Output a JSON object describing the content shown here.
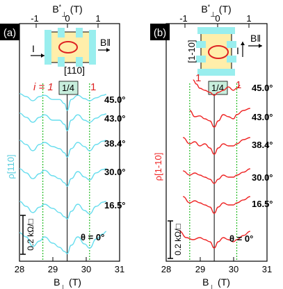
{
  "chart_data": [
    {
      "type": "line",
      "panel_label": "(a)",
      "xlabel": "B⊥ (T)",
      "xlabel_top": "B*⊥ (T)",
      "ylabel": "ρ[110]",
      "x_ticks": [
        "28",
        "29",
        "30",
        "31"
      ],
      "x_top_ticks": [
        "-1",
        "0",
        "1"
      ],
      "xlim": [
        28,
        31
      ],
      "series_color": "#66ddee",
      "markers": {
        "i_label": "i = 1",
        "one_right": "1",
        "quarter": "1/4",
        "left_x": 28.7,
        "center_x": 29.43,
        "right_x": 30.1
      },
      "inset": {
        "current": "I",
        "field": "B‖",
        "direction": "[110]"
      },
      "scale_bar": "0.2 kΩ/□",
      "angles": [
        "45.0°",
        "43.0°",
        "38.4°",
        "30.0°",
        "16.5°",
        "θ = 0°"
      ],
      "series": [
        {
          "angle": "45.0°",
          "x": [
            28.0,
            28.2,
            28.4,
            28.6,
            28.75,
            29.0,
            29.2,
            29.35,
            29.43,
            29.55,
            29.75,
            29.95,
            30.1,
            30.3,
            30.5,
            30.6
          ],
          "y": [
            0.12,
            0.05,
            -0.05,
            0.05,
            0.08,
            -0.02,
            -0.02,
            -0.12,
            -0.28,
            -0.02,
            0.08,
            0.0,
            -0.05,
            0.02,
            0.08,
            0.1
          ]
        },
        {
          "angle": "43.0°",
          "x": [
            28.0,
            28.2,
            28.4,
            28.6,
            28.75,
            29.0,
            29.2,
            29.35,
            29.43,
            29.55,
            29.75,
            29.95,
            30.1,
            30.3,
            30.5,
            30.6
          ],
          "y": [
            0.12,
            0.02,
            -0.1,
            0.02,
            0.08,
            -0.05,
            -0.05,
            -0.15,
            -0.3,
            -0.05,
            0.08,
            -0.05,
            -0.1,
            0.0,
            0.08,
            0.1
          ]
        },
        {
          "angle": "38.4°",
          "x": [
            28.0,
            28.2,
            28.4,
            28.6,
            28.75,
            29.0,
            29.2,
            29.35,
            29.43,
            29.55,
            29.75,
            29.95,
            30.1,
            30.3,
            30.5,
            30.6
          ],
          "y": [
            0.1,
            0.0,
            -0.15,
            0.0,
            0.05,
            -0.05,
            -0.1,
            -0.2,
            -0.3,
            -0.1,
            0.05,
            -0.05,
            -0.15,
            0.0,
            0.08,
            0.1
          ]
        },
        {
          "angle": "30.0°",
          "x": [
            28.0,
            28.2,
            28.4,
            28.6,
            28.75,
            29.0,
            29.2,
            29.35,
            29.43,
            29.55,
            29.75,
            29.95,
            30.1,
            30.3,
            30.5,
            30.6
          ],
          "y": [
            0.12,
            0.02,
            -0.12,
            0.0,
            0.08,
            -0.05,
            -0.12,
            -0.22,
            -0.3,
            -0.12,
            0.05,
            -0.08,
            -0.15,
            0.02,
            0.1,
            0.12
          ]
        },
        {
          "angle": "16.5°",
          "x": [
            28.0,
            28.2,
            28.4,
            28.6,
            28.75,
            29.0,
            29.2,
            29.35,
            29.43,
            29.55,
            29.75,
            29.95,
            30.1,
            30.3,
            30.5,
            30.6
          ],
          "y": [
            0.12,
            0.0,
            -0.15,
            -0.02,
            0.05,
            -0.05,
            -0.15,
            -0.25,
            -0.3,
            -0.12,
            0.05,
            -0.1,
            -0.18,
            0.0,
            0.1,
            0.12
          ]
        },
        {
          "angle": "θ = 0°",
          "x": [
            28.0,
            28.2,
            28.4,
            28.6,
            28.75,
            29.0,
            29.2,
            29.35,
            29.43,
            29.55,
            29.75,
            29.95,
            30.1,
            30.3,
            30.5,
            30.6
          ],
          "y": [
            0.15,
            0.05,
            -0.18,
            -0.05,
            0.05,
            -0.1,
            -0.2,
            -0.3,
            -0.35,
            -0.15,
            0.05,
            -0.12,
            -0.22,
            0.0,
            0.12,
            0.18
          ]
        }
      ]
    },
    {
      "type": "line",
      "panel_label": "(b)",
      "xlabel": "B⊥ (T)",
      "xlabel_top": "B*⊥ (T)",
      "ylabel": "ρ[1-10]",
      "x_ticks": [
        "28",
        "29",
        "30",
        "31"
      ],
      "x_top_ticks": [
        "-1",
        "0",
        "1"
      ],
      "xlim": [
        28,
        31
      ],
      "series_color": "#ee2222",
      "markers": {
        "one_left": "1",
        "one_right": "1",
        "quarter": "1/4",
        "left_x": 28.7,
        "center_x": 29.43,
        "right_x": 30.1
      },
      "inset": {
        "current": "I",
        "field": "B‖",
        "direction": "[1-10]"
      },
      "scale_bar": "0.2 kΩ/□",
      "angles": [
        "45.0°",
        "43.0°",
        "38.4°",
        "30.0°",
        "16.5°",
        "θ = 0°"
      ],
      "series": [
        {
          "angle": "45.0°",
          "x": [
            28.8,
            28.9,
            29.0,
            29.15,
            29.3,
            29.43,
            29.55,
            29.7,
            29.85,
            30.0,
            30.1,
            30.2
          ],
          "y": [
            0.25,
            0.15,
            0.05,
            0.0,
            -0.05,
            -0.12,
            -0.05,
            0.0,
            0.08,
            0.0,
            0.05,
            0.12
          ]
        },
        {
          "angle": "43.0°",
          "x": [
            28.7,
            28.85,
            29.0,
            29.15,
            29.3,
            29.43,
            29.55,
            29.7,
            29.85,
            30.0,
            30.1,
            30.3,
            30.5
          ],
          "y": [
            0.15,
            0.0,
            0.02,
            -0.05,
            -0.1,
            -0.25,
            -0.1,
            0.05,
            0.0,
            -0.05,
            0.05,
            0.15,
            0.2
          ]
        },
        {
          "angle": "38.4°",
          "x": [
            28.5,
            28.7,
            28.85,
            29.0,
            29.15,
            29.3,
            29.43,
            29.55,
            29.7,
            29.85,
            30.0,
            30.1,
            30.3,
            30.5
          ],
          "y": [
            0.2,
            0.05,
            0.1,
            0.0,
            0.05,
            -0.05,
            -0.2,
            -0.05,
            0.05,
            0.0,
            0.0,
            0.05,
            0.15,
            0.2
          ]
        },
        {
          "angle": "30.0°",
          "x": [
            28.5,
            28.7,
            28.85,
            29.0,
            29.15,
            29.3,
            29.43,
            29.55,
            29.7,
            29.85,
            30.0,
            30.1,
            30.3,
            30.5
          ],
          "y": [
            0.15,
            0.05,
            0.1,
            0.05,
            0.0,
            -0.05,
            -0.15,
            -0.05,
            0.05,
            0.0,
            0.0,
            0.05,
            0.12,
            0.2
          ]
        },
        {
          "angle": "16.5°",
          "x": [
            28.5,
            28.7,
            28.85,
            29.0,
            29.15,
            29.3,
            29.43,
            29.55,
            29.7,
            29.85,
            30.0,
            30.1,
            30.3,
            30.5
          ],
          "y": [
            0.2,
            0.05,
            0.1,
            0.05,
            0.0,
            -0.05,
            -0.2,
            -0.05,
            0.05,
            0.0,
            0.0,
            0.05,
            0.12,
            0.2
          ]
        },
        {
          "angle": "θ = 0°",
          "x": [
            28.4,
            28.6,
            28.8,
            29.0,
            29.15,
            29.3,
            29.43,
            29.55,
            29.7,
            29.85,
            30.0,
            30.1,
            30.3,
            30.5
          ],
          "y": [
            0.2,
            0.05,
            0.0,
            0.05,
            0.0,
            -0.05,
            -0.2,
            -0.05,
            0.05,
            0.0,
            -0.05,
            0.0,
            0.1,
            0.2
          ]
        }
      ]
    }
  ]
}
